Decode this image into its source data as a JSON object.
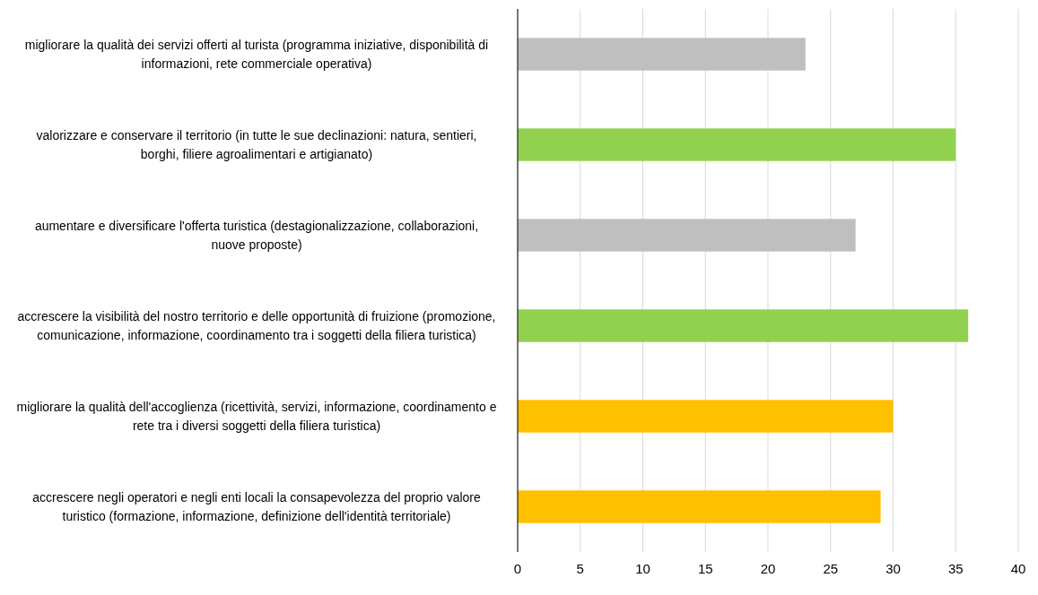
{
  "chart_data": {
    "type": "bar",
    "orientation": "horizontal",
    "categories": [
      "migliorare la qualità dei servizi offerti al turista (programma iniziative, disponibilità di informazioni, rete commerciale operativa)",
      "valorizzare e conservare il territorio (in tutte le sue declinazioni: natura, sentieri, borghi, filiere agroalimentari e artigianato)",
      "aumentare e diversificare l'offerta turistica (destagionalizzazione, collaborazioni, nuove proposte)",
      "accrescere la visibilità del nostro territorio e delle opportunità di fruizione (promozione, comunicazione, informazione, coordinamento tra i soggetti della filiera turistica)",
      "migliorare la qualità dell'accoglienza (ricettività, servizi, informazione, coordinamento e rete tra i diversi soggetti della filiera turistica)",
      "accrescere negli operatori e negli enti locali la consapevolezza del proprio valore turistico (formazione, informazione, definizione dell'identità territoriale)"
    ],
    "values": [
      23,
      35,
      27,
      36,
      30,
      29
    ],
    "colors": [
      "#bfbfbf",
      "#92d050",
      "#bfbfbf",
      "#92d050",
      "#ffc000",
      "#ffc000"
    ],
    "xlim": [
      0,
      40
    ],
    "xticks": [
      0,
      5,
      10,
      15,
      20,
      25,
      30,
      35,
      40
    ],
    "grid": "x"
  }
}
